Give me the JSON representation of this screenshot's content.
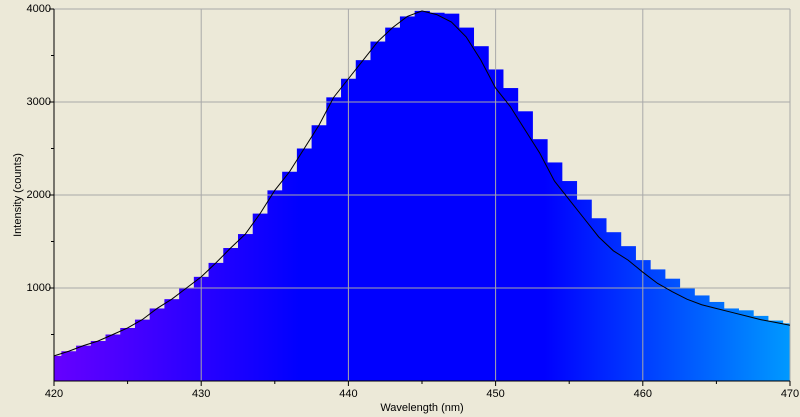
{
  "chart_data": {
    "type": "area-histogram",
    "x_label": "Wavelength (nm)",
    "y_label": "Intensity (counts)",
    "x": [
      420,
      421,
      422,
      423,
      424,
      425,
      426,
      427,
      428,
      429,
      430,
      431,
      432,
      433,
      434,
      435,
      436,
      437,
      438,
      439,
      440,
      441,
      442,
      443,
      444,
      445,
      446,
      447,
      448,
      449,
      450,
      451,
      452,
      453,
      454,
      455,
      456,
      457,
      458,
      459,
      460,
      461,
      462,
      463,
      464,
      465,
      466,
      467,
      468,
      469,
      470
    ],
    "series": [
      {
        "kind": "bars",
        "gradient": [
          "#6600ff",
          "#0000ff",
          "#0000ff",
          "#0099ff"
        ],
        "values": [
          270,
          320,
          380,
          430,
          500,
          570,
          660,
          780,
          880,
          1000,
          1120,
          1270,
          1430,
          1580,
          1800,
          2050,
          2250,
          2500,
          2750,
          3050,
          3250,
          3450,
          3650,
          3800,
          3920,
          3980,
          3960,
          3950,
          3800,
          3600,
          3350,
          3150,
          2900,
          2600,
          2350,
          2150,
          1950,
          1750,
          1600,
          1450,
          1300,
          1200,
          1100,
          1000,
          920,
          850,
          780,
          760,
          700,
          650,
          620
        ]
      },
      {
        "kind": "line",
        "color": "#000000",
        "values": [
          270,
          320,
          380,
          430,
          500,
          570,
          660,
          780,
          880,
          1000,
          1120,
          1270,
          1430,
          1580,
          1800,
          2050,
          2250,
          2500,
          2750,
          3050,
          3250,
          3450,
          3650,
          3800,
          3920,
          3980,
          3940,
          3860,
          3700,
          3450,
          3150,
          2950,
          2700,
          2450,
          2150,
          1950,
          1750,
          1550,
          1400,
          1300,
          1170,
          1050,
          960,
          880,
          820,
          780,
          740,
          700,
          660,
          630,
          600
        ]
      }
    ],
    "xlim": [
      420,
      470
    ],
    "ylim": [
      0,
      4000
    ],
    "xticks": [
      420,
      430,
      440,
      450,
      460,
      470
    ],
    "yticks": [
      1000,
      2000,
      3000,
      4000
    ],
    "grid": true
  }
}
